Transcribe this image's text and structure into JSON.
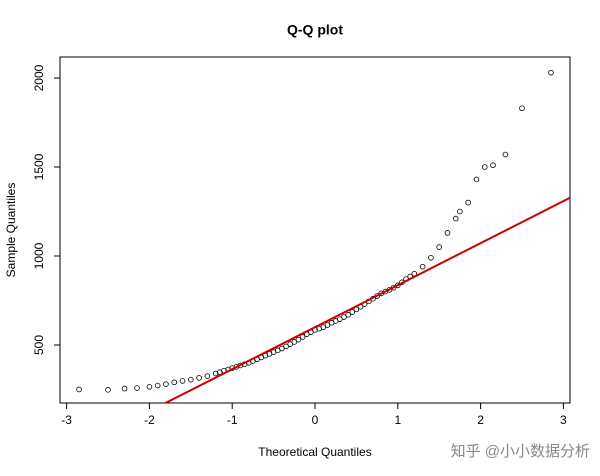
{
  "chart_data": {
    "type": "scatter",
    "title": "Q-Q plot",
    "x_label": "Theoretical Quantiles",
    "y_label": "Sample Quantiles",
    "watermark": "知乎 @小小数据分析",
    "xlim": [
      -3.08,
      3.08
    ],
    "ylim": [
      174,
      2118
    ],
    "xticks": [
      -3,
      -2,
      -1,
      0,
      1,
      2,
      3
    ],
    "yticks": [
      500,
      1000,
      1500,
      2000
    ],
    "color": "#000000",
    "reference_line": {
      "intercept": 600,
      "slope": 236,
      "color": "#cc0000"
    },
    "x": [
      -2.85,
      -2.5,
      -2.3,
      -2.15,
      -2.0,
      -1.9,
      -1.8,
      -1.7,
      -1.6,
      -1.5,
      -1.4,
      -1.3,
      -1.2,
      -1.15,
      -1.1,
      -1.05,
      -1.0,
      -0.95,
      -0.9,
      -0.85,
      -0.8,
      -0.75,
      -0.7,
      -0.65,
      -0.6,
      -0.55,
      -0.5,
      -0.45,
      -0.4,
      -0.35,
      -0.3,
      -0.25,
      -0.2,
      -0.15,
      -0.1,
      -0.05,
      0,
      0.05,
      0.1,
      0.15,
      0.2,
      0.25,
      0.3,
      0.35,
      0.4,
      0.45,
      0.5,
      0.55,
      0.6,
      0.65,
      0.7,
      0.75,
      0.8,
      0.85,
      0.9,
      0.95,
      1.0,
      1.05,
      1.1,
      1.15,
      1.2,
      1.3,
      1.4,
      1.5,
      1.6,
      1.7,
      1.75,
      1.85,
      1.95,
      2.05,
      2.15,
      2.3,
      2.5,
      2.85
    ],
    "values": [
      250,
      248,
      255,
      258,
      265,
      272,
      280,
      290,
      298,
      305,
      315,
      325,
      340,
      347,
      355,
      362,
      370,
      377,
      385,
      392,
      400,
      410,
      420,
      430,
      440,
      450,
      460,
      470,
      480,
      492,
      505,
      517,
      530,
      545,
      560,
      572,
      585,
      592,
      600,
      612,
      625,
      635,
      645,
      657,
      670,
      685,
      700,
      715,
      730,
      745,
      760,
      775,
      790,
      800,
      810,
      822,
      835,
      852,
      870,
      885,
      900,
      940,
      990,
      1050,
      1130,
      1210,
      1250,
      1300,
      1430,
      1500,
      1510,
      1570,
      1830,
      2030
    ]
  }
}
